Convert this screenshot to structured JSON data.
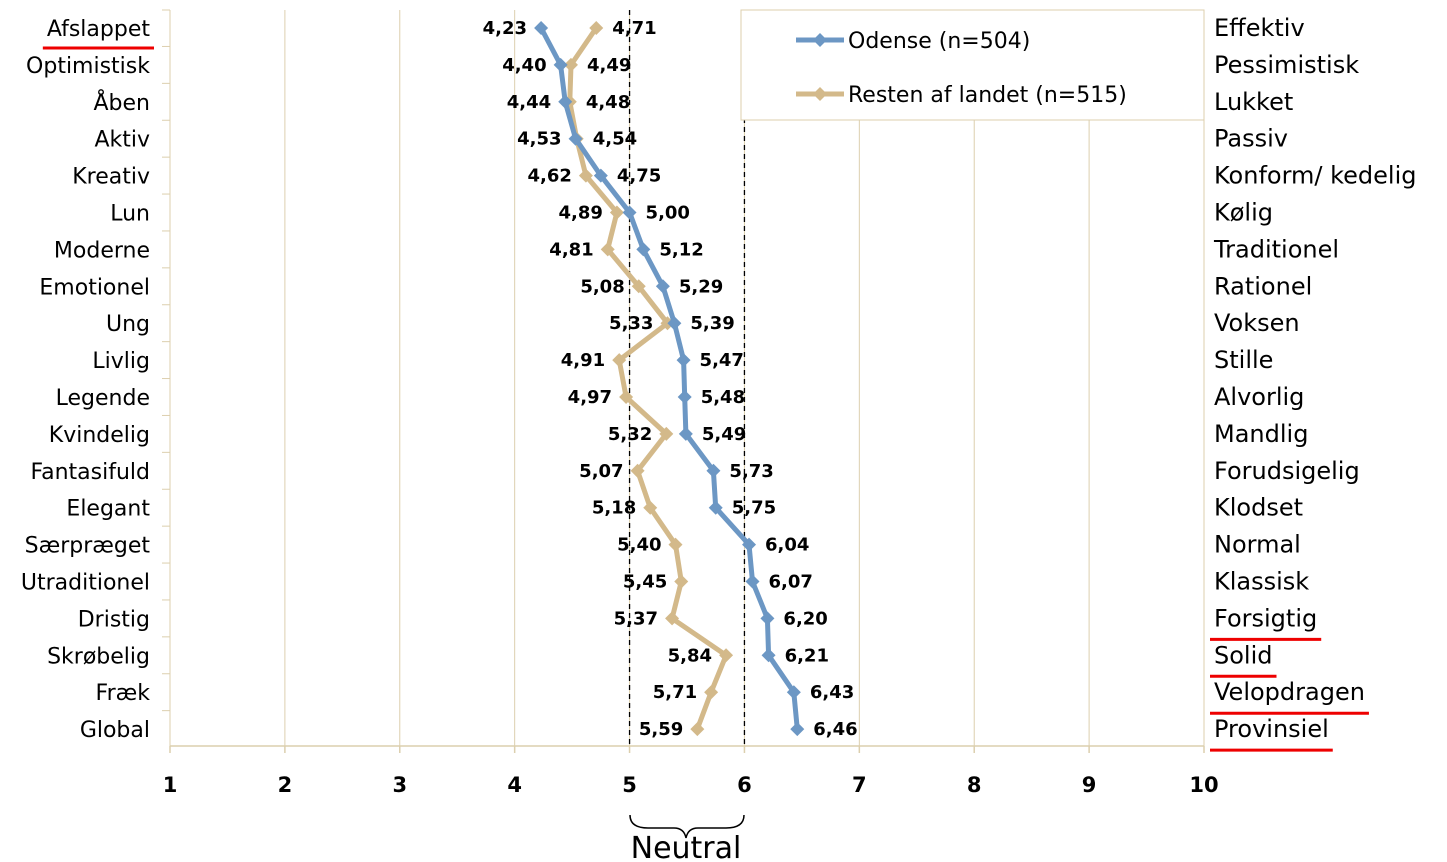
{
  "chart_data": {
    "type": "line",
    "orientation": "horizontal",
    "xlim": [
      1,
      10
    ],
    "xticks": [
      "1",
      "2",
      "3",
      "4",
      "5",
      "6",
      "7",
      "8",
      "9",
      "10"
    ],
    "grid": true,
    "legend_position": "top-right",
    "left_labels": [
      "Afslappet",
      "Optimistisk",
      "Åben",
      "Aktiv",
      "Kreativ",
      "Lun",
      "Moderne",
      "Emotionel",
      "Ung",
      "Livlig",
      "Legende",
      "Kvindelig",
      "Fantasifuld",
      "Elegant",
      "Særpræget",
      "Utraditionel",
      "Dristig",
      "Skrøbelig",
      "Fræk",
      "Global"
    ],
    "right_labels": [
      "Effektiv",
      "Pessimistisk",
      "Lukket",
      "Passiv",
      "Konform/ kedelig",
      "Kølig",
      "Traditionel",
      "Rationel",
      "Voksen",
      "Stille",
      "Alvorlig",
      "Mandlig",
      "Forudsigelig",
      "Klodset",
      "Normal",
      "Klassisk",
      "Forsigtig",
      "Solid",
      "Velopdragen",
      "Provinsiel"
    ],
    "underlined_left": [
      "Afslappet"
    ],
    "underlined_right": [
      "Forsigtig",
      "Solid",
      "Velopdragen",
      "Provinsiel"
    ],
    "underline_color": "#ee0000",
    "series": [
      {
        "name": "Odense (n=504)",
        "color": "#6c97c4",
        "values": [
          4.23,
          4.4,
          4.44,
          4.53,
          4.75,
          5.0,
          5.12,
          5.29,
          5.39,
          5.47,
          5.48,
          5.49,
          5.73,
          5.75,
          6.04,
          6.07,
          6.2,
          6.21,
          6.43,
          6.46
        ],
        "labels": [
          "4,23",
          "4,40",
          "4,44",
          "4,53",
          "4,75",
          "5,00",
          "5,12",
          "5,29",
          "5,39",
          "5,47",
          "5,48",
          "5,49",
          "5,73",
          "5,75",
          "6,04",
          "6,07",
          "6,20",
          "6,21",
          "6,43",
          "6,46"
        ]
      },
      {
        "name": "Resten af landet (n=515)",
        "color": "#d3b98a",
        "values": [
          4.71,
          4.49,
          4.48,
          4.54,
          4.62,
          4.89,
          4.81,
          5.08,
          5.33,
          4.91,
          4.97,
          5.32,
          5.07,
          5.18,
          5.4,
          5.45,
          5.37,
          5.84,
          5.71,
          5.59
        ],
        "labels": [
          "4,71",
          "4,49",
          "4,48",
          "4,54",
          "4,62",
          "4,89",
          "4,81",
          "5,08",
          "5,33",
          "4,91",
          "4,97",
          "5,32",
          "5,07",
          "5,18",
          "5,40",
          "5,45",
          "5,37",
          "5,84",
          "5,71",
          "5,59"
        ]
      }
    ],
    "reference_lines": [
      5,
      6
    ],
    "annotation": "Neutral"
  }
}
